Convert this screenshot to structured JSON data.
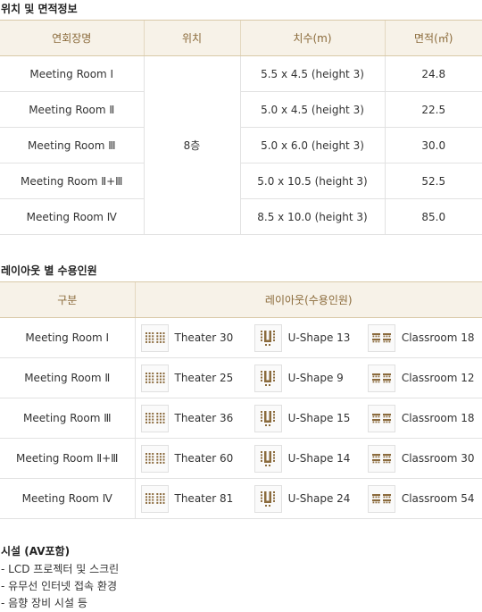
{
  "section1": {
    "title": "위치 및 면적정보",
    "headers": [
      "연회장명",
      "위치",
      "치수(m)",
      "면적(㎡)"
    ],
    "location": "8층",
    "rows": [
      {
        "name": "Meeting Room Ⅰ",
        "size": "5.5 x 4.5 (height 3)",
        "area": "24.8"
      },
      {
        "name": "Meeting Room Ⅱ",
        "size": "5.0 x 4.5 (height 3)",
        "area": "22.5"
      },
      {
        "name": "Meeting Room Ⅲ",
        "size": "5.0 x 6.0 (height 3)",
        "area": "30.0"
      },
      {
        "name": "Meeting Room Ⅱ+Ⅲ",
        "size": "5.0 x 10.5 (height 3)",
        "area": "52.5"
      },
      {
        "name": "Meeting Room Ⅳ",
        "size": "8.5 x 10.0 (height 3)",
        "area": "85.0"
      }
    ]
  },
  "section2": {
    "title": "레이아웃 별 수용인원",
    "headers": [
      "구분",
      "레이아웃(수용인원)"
    ],
    "icons": [
      "theater-icon",
      "u-shape-icon",
      "classroom-icon"
    ],
    "rows": [
      {
        "name": "Meeting Room Ⅰ",
        "theater": "Theater 30",
        "ushape": "U-Shape 13",
        "classroom": "Classroom 18"
      },
      {
        "name": "Meeting Room Ⅱ",
        "theater": "Theater 25",
        "ushape": "U-Shape 9",
        "classroom": "Classroom 12"
      },
      {
        "name": "Meeting Room Ⅲ",
        "theater": "Theater 36",
        "ushape": "U-Shape 15",
        "classroom": "Classroom 18"
      },
      {
        "name": "Meeting Room Ⅱ+Ⅲ",
        "theater": "Theater 60",
        "ushape": "U-Shape 14",
        "classroom": "Classroom 30"
      },
      {
        "name": "Meeting Room Ⅳ",
        "theater": "Theater 81",
        "ushape": "U-Shape 24",
        "classroom": "Classroom 54"
      }
    ]
  },
  "facilities": {
    "title": "시설 (AV포함)",
    "items": [
      "- LCD 프로젝터 및 스크린",
      "- 유무선 인터넷 접속 환경",
      "- 음향 장비 시설 등"
    ]
  },
  "colors": {
    "header_bg": "#f7f2e8",
    "header_text": "#8a6a3a",
    "icon_brown": "#8b6b3d"
  }
}
